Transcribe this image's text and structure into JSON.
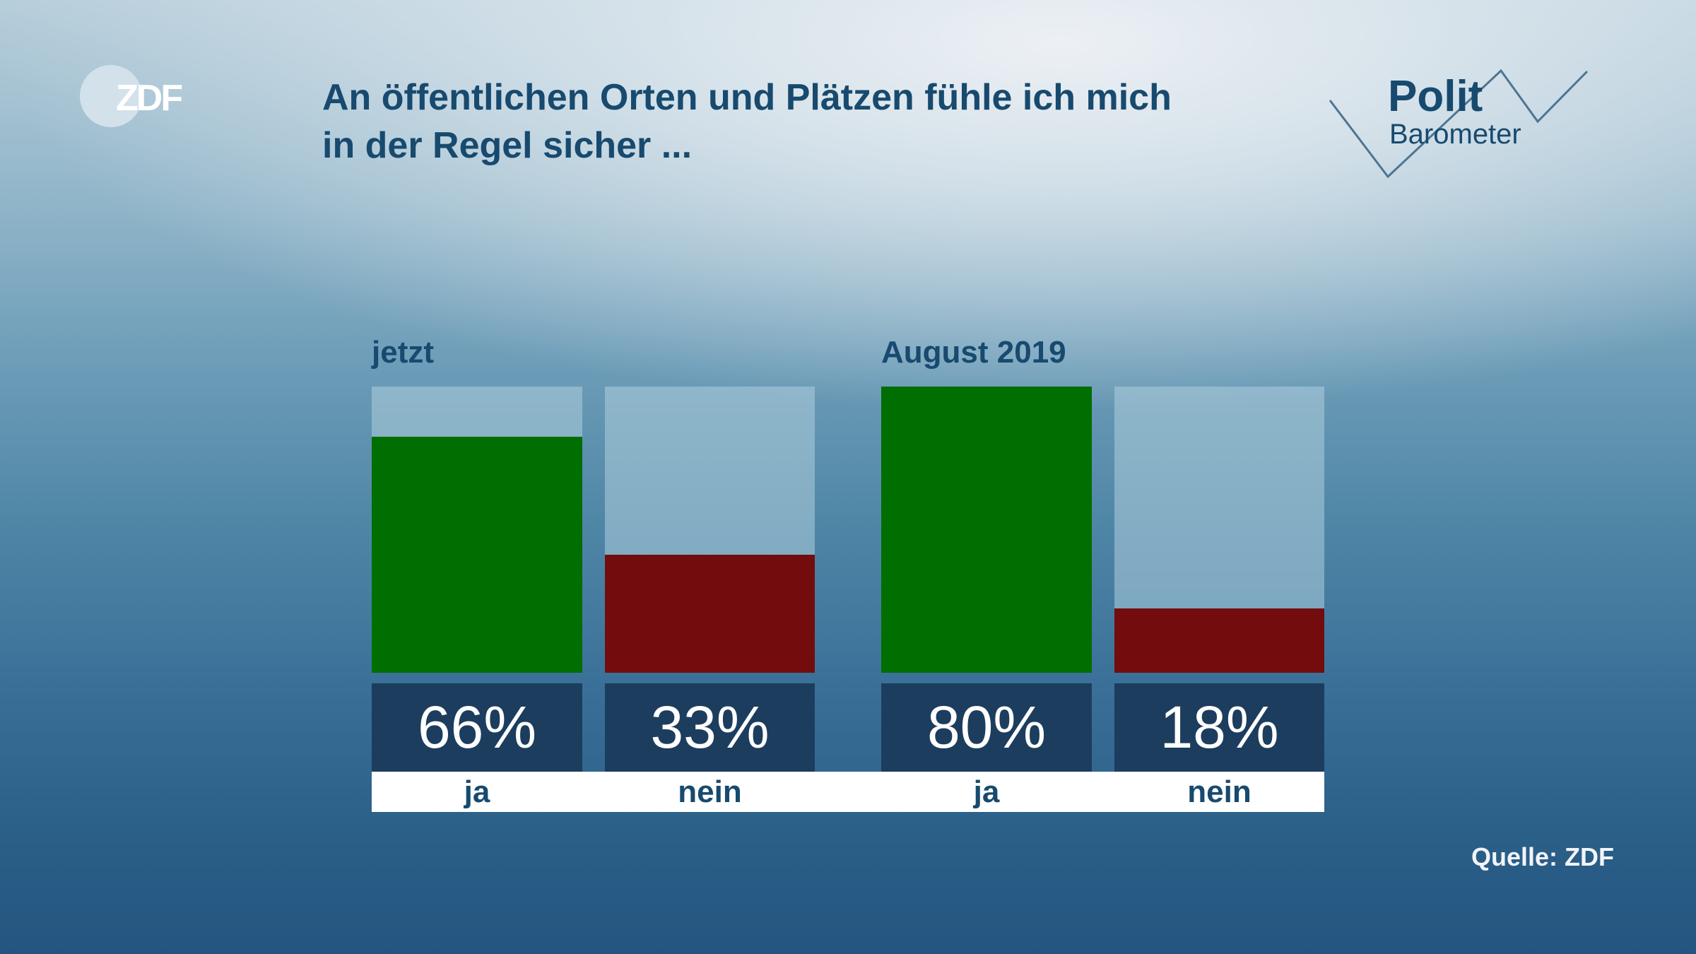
{
  "header": {
    "brand_logo": "ZDF",
    "title_lines": [
      "An öffentlichen Orten und Plätzen fühle ich mich",
      "in der Regel sicher ..."
    ],
    "program_logo": {
      "line1": "Polit",
      "line2": "Barometer"
    }
  },
  "colors": {
    "ja": "#006e00",
    "nein": "#730d0d",
    "value_box": "#1c3d5e",
    "text_dark": "#174a6e"
  },
  "chart_data": {
    "type": "bar",
    "title": "An öffentlichen Orten und Plätzen fühle ich mich in der Regel sicher ...",
    "xlabel": "",
    "ylabel": "",
    "ylim": [
      0,
      80
    ],
    "grid": false,
    "groups": [
      {
        "label": "jetzt",
        "bars": [
          {
            "category": "ja",
            "value": 66,
            "label": "66%"
          },
          {
            "category": "nein",
            "value": 33,
            "label": "33%"
          }
        ]
      },
      {
        "label": "August 2019",
        "bars": [
          {
            "category": "ja",
            "value": 80,
            "label": "80%"
          },
          {
            "category": "nein",
            "value": 18,
            "label": "18%"
          }
        ]
      }
    ],
    "categories": [
      "ja",
      "nein"
    ],
    "series": [
      {
        "name": "jetzt",
        "values": [
          66,
          33
        ]
      },
      {
        "name": "August 2019",
        "values": [
          80,
          18
        ]
      }
    ]
  },
  "footer": {
    "source": "Quelle: ZDF"
  }
}
